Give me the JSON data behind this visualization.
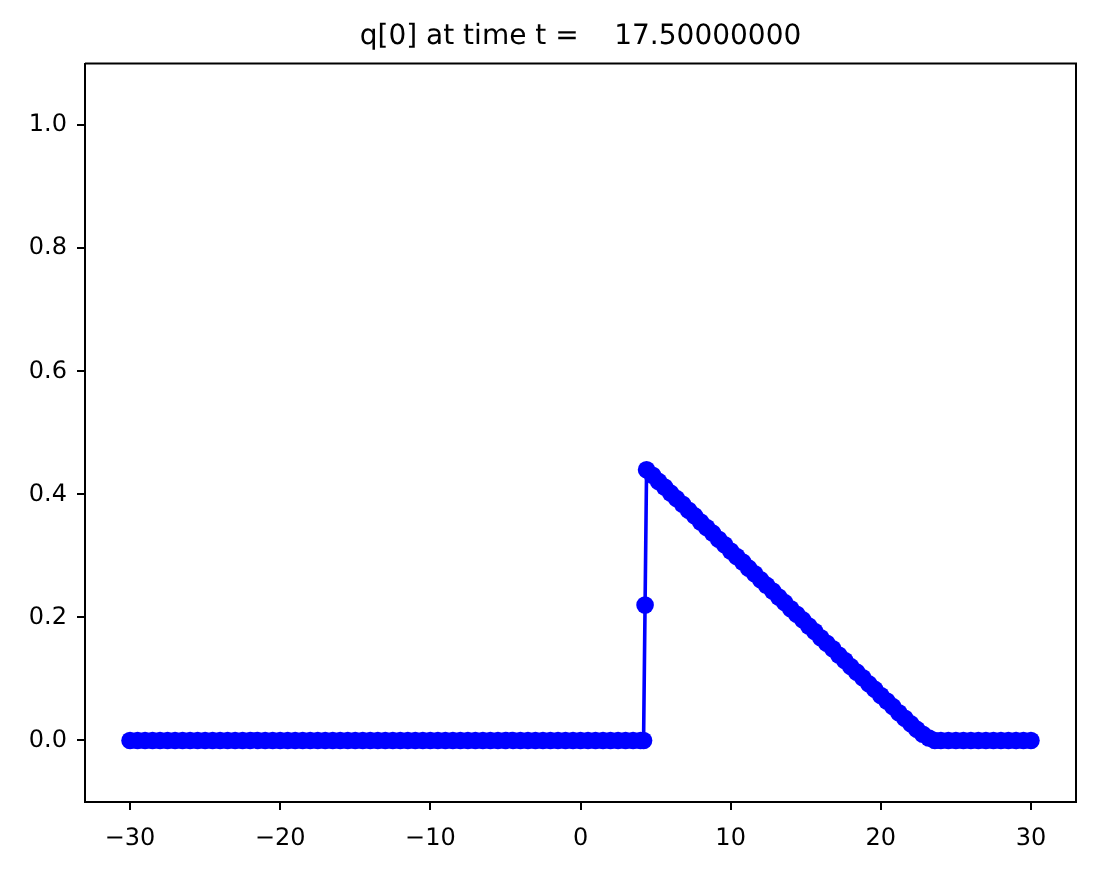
{
  "chart_data": {
    "type": "line",
    "title": "q[0] at time t =    17.50000000",
    "marker": "circle",
    "line_style": "solid",
    "color": "#0000ff",
    "x": [
      -30,
      -29.5,
      -29,
      -28.5,
      -28,
      -27.5,
      -27,
      -26.5,
      -26,
      -25.5,
      -25,
      -24.5,
      -24,
      -23.5,
      -23,
      -22.5,
      -22,
      -21.5,
      -21,
      -20.5,
      -20,
      -19.5,
      -19,
      -18.5,
      -18,
      -17.5,
      -17,
      -16.5,
      -16,
      -15.5,
      -15,
      -14.5,
      -14,
      -13.5,
      -13,
      -12.5,
      -12,
      -11.5,
      -11,
      -10.5,
      -10,
      -9.5,
      -9,
      -8.5,
      -8,
      -7.5,
      -7,
      -6.5,
      -6,
      -5.5,
      -5,
      -4.5,
      -4,
      -3.5,
      -3,
      -2.5,
      -2,
      -1.5,
      -1,
      -0.5,
      0,
      0.5,
      1,
      1.5,
      2,
      2.5,
      3,
      3.5,
      4,
      4.2,
      4.3,
      4.4,
      4.8,
      5.2,
      5.6,
      6.0,
      6.4,
      6.8,
      7.2,
      7.6,
      8.0,
      8.4,
      8.8,
      9.2,
      9.6,
      10.0,
      10.4,
      10.8,
      11.2,
      11.6,
      12.0,
      12.4,
      12.8,
      13.2,
      13.6,
      14.0,
      14.4,
      14.8,
      15.2,
      15.6,
      16.0,
      16.4,
      16.8,
      17.2,
      17.6,
      18.0,
      18.4,
      18.8,
      19.2,
      19.6,
      20.0,
      20.4,
      20.8,
      21.2,
      21.6,
      22.0,
      22.4,
      22.8,
      23.2,
      23.6,
      24,
      24.5,
      25,
      25.5,
      26,
      26.5,
      27,
      27.5,
      28,
      28.5,
      29,
      29.5,
      30
    ],
    "values": [
      0,
      0,
      0,
      0,
      0,
      0,
      0,
      0,
      0,
      0,
      0,
      0,
      0,
      0,
      0,
      0,
      0,
      0,
      0,
      0,
      0,
      0,
      0,
      0,
      0,
      0,
      0,
      0,
      0,
      0,
      0,
      0,
      0,
      0,
      0,
      0,
      0,
      0,
      0,
      0,
      0,
      0,
      0,
      0,
      0,
      0,
      0,
      0,
      0,
      0,
      0,
      0,
      0,
      0,
      0,
      0,
      0,
      0,
      0,
      0,
      0,
      0,
      0,
      0,
      0,
      0,
      0,
      0,
      0,
      0,
      0.22,
      0.44,
      0.431,
      0.421,
      0.412,
      0.402,
      0.393,
      0.384,
      0.374,
      0.365,
      0.355,
      0.346,
      0.337,
      0.327,
      0.318,
      0.308,
      0.299,
      0.29,
      0.28,
      0.271,
      0.261,
      0.252,
      0.243,
      0.233,
      0.224,
      0.214,
      0.205,
      0.196,
      0.186,
      0.177,
      0.167,
      0.158,
      0.149,
      0.139,
      0.13,
      0.12,
      0.111,
      0.102,
      0.092,
      0.083,
      0.073,
      0.064,
      0.055,
      0.045,
      0.036,
      0.027,
      0.018,
      0.01,
      0.004,
      0,
      0,
      0,
      0,
      0,
      0,
      0,
      0,
      0,
      0,
      0,
      0,
      0,
      0
    ],
    "xlim": [
      -33,
      33
    ],
    "xticks": [
      {
        "value": -30,
        "label": "−30"
      },
      {
        "value": -20,
        "label": "−20"
      },
      {
        "value": -10,
        "label": "−10"
      },
      0,
      10,
      20,
      30
    ],
    "ylim": [
      -0.1,
      1.1
    ],
    "yticks": [
      {
        "value": 0,
        "label": "0.0"
      },
      0.2,
      0.4,
      0.6,
      0.8,
      {
        "value": 1,
        "label": "1.0"
      }
    ]
  }
}
